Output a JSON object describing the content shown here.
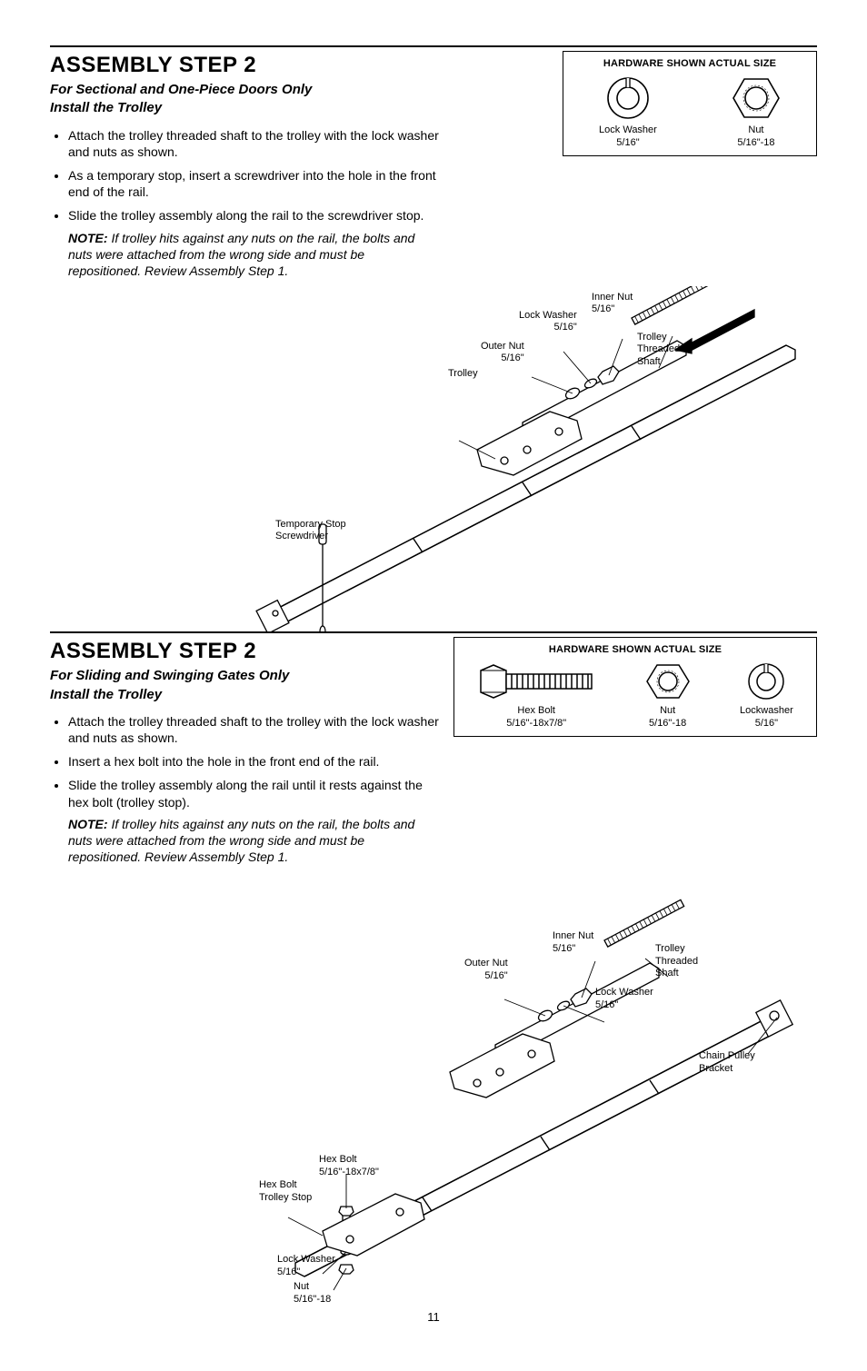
{
  "page_number": "11",
  "hw_box_title": "HARDWARE SHOWN ACTUAL SIZE",
  "section1": {
    "heading": "ASSEMBLY STEP 2",
    "subtitle_line1": "For Sectional and One-Piece Doors Only",
    "subtitle_line2": "Install the Trolley",
    "bullets": [
      "Attach the trolley threaded shaft to the trolley with the lock washer and nuts as shown.",
      "As a temporary stop, insert a screwdriver into the hole in the front end of the rail.",
      "Slide the trolley assembly along the rail to the screwdriver stop."
    ],
    "note_label": "NOTE:",
    "note_body": " If trolley hits against any nuts on the rail, the bolts and nuts were attached from the wrong side and must be repositioned. Review Assembly Step 1.",
    "hw_items": [
      {
        "name": "Lock Washer",
        "size": "5/16\""
      },
      {
        "name": "Nut",
        "size": "5/16\"-18"
      }
    ],
    "diagram_labels": {
      "inner_nut": "Inner Nut\n5/16\"",
      "lock_washer_top": "Lock Washer\n5/16\"",
      "outer_nut": "Outer Nut\n5/16\"",
      "trolley": "Trolley",
      "trolley_shaft": "Trolley\nThreaded\nShaft",
      "temp_stop": "Temporary Stop\nScrewdriver"
    }
  },
  "section2": {
    "heading": "ASSEMBLY STEP 2",
    "subtitle_line1": "For Sliding and Swinging Gates Only",
    "subtitle_line2": "Install the Trolley",
    "bullets": [
      "Attach the trolley threaded shaft to the trolley with the lock washer and nuts as shown.",
      "Insert a hex bolt into the hole in the front end of the rail.",
      "Slide the trolley assembly along the rail until it rests against the hex bolt (trolley stop)."
    ],
    "note_label": "NOTE:",
    "note_body": " If trolley hits against any nuts on the rail, the bolts and nuts were attached from the wrong side and must be repositioned. Review Assembly Step 1.",
    "hw_items": [
      {
        "name": "Hex Bolt",
        "size": "5/16\"-18x7/8\""
      },
      {
        "name": "Nut",
        "size": "5/16\"-18"
      },
      {
        "name": "Lockwasher",
        "size": "5/16\""
      }
    ],
    "diagram_labels": {
      "inner_nut": "Inner Nut\n5/16\"",
      "outer_nut": "Outer Nut\n5/16\"",
      "trolley_shaft": "Trolley\nThreaded\nShaft",
      "lock_washer": "Lock Washer\n5/16\"",
      "chain_pulley": "Chain Pulley\nBracket",
      "hex_bolt_top": "Hex Bolt\n5/16\"-18x7/8\"",
      "hex_bolt_stop": "Hex Bolt\nTrolley Stop",
      "lock_washer_btm": "Lock Washer\n5/16\"",
      "nut_btm": "Nut\n5/16\"-18"
    }
  },
  "colors": {
    "text": "#000000",
    "rule": "#000000",
    "background": "#ffffff"
  }
}
